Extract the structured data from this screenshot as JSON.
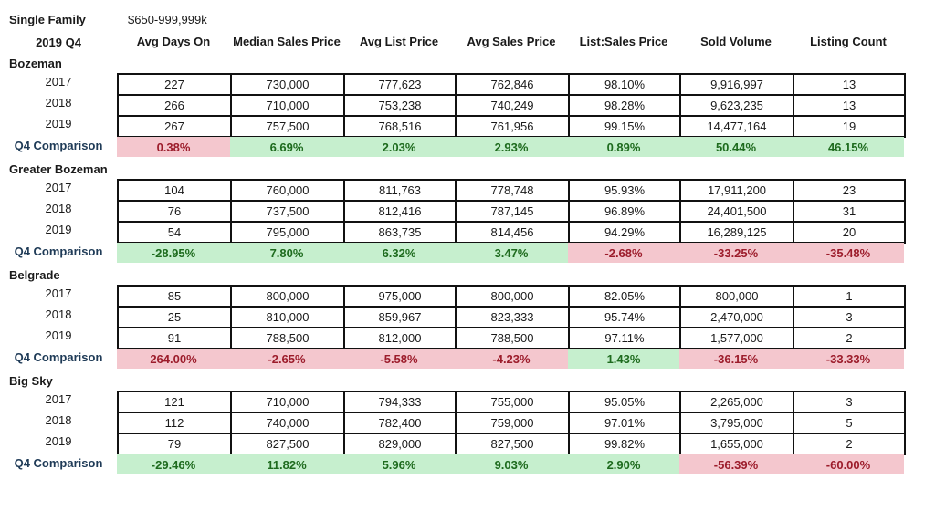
{
  "header": {
    "label1": "Single Family",
    "price_range": "$650-999,999k",
    "label2": "2019 Q4"
  },
  "columns": [
    "Avg Days On",
    "Median Sales Price",
    "Avg List Price",
    "Avg Sales Price",
    "List:Sales Price",
    "Sold Volume",
    "Listing Count"
  ],
  "sections": [
    {
      "name": "Bozeman",
      "rows": [
        {
          "year": "2017",
          "values": [
            "227",
            "730,000",
            "777,623",
            "762,846",
            "98.10%",
            "9,916,997",
            "13"
          ]
        },
        {
          "year": "2018",
          "values": [
            "266",
            "710,000",
            "753,238",
            "740,249",
            "98.28%",
            "9,623,235",
            "13"
          ]
        },
        {
          "year": "2019",
          "values": [
            "267",
            "757,500",
            "768,516",
            "761,956",
            "99.15%",
            "14,477,164",
            "19"
          ]
        }
      ],
      "comparison_label": "Q4 Comparison",
      "comparison": [
        "0.38%",
        "6.69%",
        "2.03%",
        "2.93%",
        "0.89%",
        "50.44%",
        "46.15%"
      ],
      "comparison_status": [
        "neg",
        "pos",
        "pos",
        "pos",
        "pos",
        "pos",
        "pos"
      ]
    },
    {
      "name": "Greater Bozeman",
      "rows": [
        {
          "year": "2017",
          "values": [
            "104",
            "760,000",
            "811,763",
            "778,748",
            "95.93%",
            "17,911,200",
            "23"
          ]
        },
        {
          "year": "2018",
          "values": [
            "76",
            "737,500",
            "812,416",
            "787,145",
            "96.89%",
            "24,401,500",
            "31"
          ]
        },
        {
          "year": "2019",
          "values": [
            "54",
            "795,000",
            "863,735",
            "814,456",
            "94.29%",
            "16,289,125",
            "20"
          ]
        }
      ],
      "comparison_label": "Q4 Comparison",
      "comparison": [
        "-28.95%",
        "7.80%",
        "6.32%",
        "3.47%",
        "-2.68%",
        "-33.25%",
        "-35.48%"
      ],
      "comparison_status": [
        "pos",
        "pos",
        "pos",
        "pos",
        "neg",
        "neg",
        "neg"
      ]
    },
    {
      "name": "Belgrade",
      "rows": [
        {
          "year": "2017",
          "values": [
            "85",
            "800,000",
            "975,000",
            "800,000",
            "82.05%",
            "800,000",
            "1"
          ]
        },
        {
          "year": "2018",
          "values": [
            "25",
            "810,000",
            "859,967",
            "823,333",
            "95.74%",
            "2,470,000",
            "3"
          ]
        },
        {
          "year": "2019",
          "values": [
            "91",
            "788,500",
            "812,000",
            "788,500",
            "97.11%",
            "1,577,000",
            "2"
          ]
        }
      ],
      "comparison_label": "Q4 Comparison",
      "comparison": [
        "264.00%",
        "-2.65%",
        "-5.58%",
        "-4.23%",
        "1.43%",
        "-36.15%",
        "-33.33%"
      ],
      "comparison_status": [
        "neg",
        "neg",
        "neg",
        "neg",
        "pos",
        "neg",
        "neg"
      ]
    },
    {
      "name": "Big Sky",
      "rows": [
        {
          "year": "2017",
          "values": [
            "121",
            "710,000",
            "794,333",
            "755,000",
            "95.05%",
            "2,265,000",
            "3"
          ]
        },
        {
          "year": "2018",
          "values": [
            "112",
            "740,000",
            "782,400",
            "759,000",
            "97.01%",
            "3,795,000",
            "5"
          ]
        },
        {
          "year": "2019",
          "values": [
            "79",
            "827,500",
            "829,000",
            "827,500",
            "99.82%",
            "1,655,000",
            "2"
          ]
        }
      ],
      "comparison_label": "Q4 Comparison",
      "comparison": [
        "-29.46%",
        "11.82%",
        "5.96%",
        "9.03%",
        "2.90%",
        "-56.39%",
        "-60.00%"
      ],
      "comparison_status": [
        "pos",
        "pos",
        "pos",
        "pos",
        "pos",
        "neg",
        "neg"
      ]
    }
  ]
}
